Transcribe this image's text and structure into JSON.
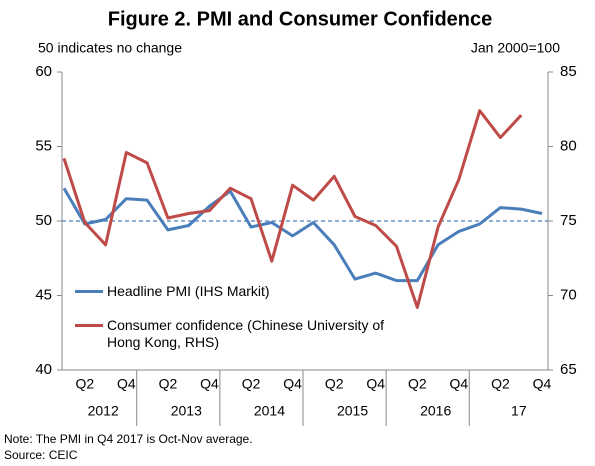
{
  "chart_data": {
    "type": "line",
    "title": "Figure 2. PMI and Consumer Confidence",
    "y_annotation": "50 indicates no change",
    "y2_annotation": "Jan 2000=100",
    "categories": [
      null,
      "Q2",
      null,
      "Q4",
      null,
      "Q2",
      null,
      "Q4",
      null,
      "Q2",
      null,
      "Q4",
      null,
      "Q2",
      null,
      "Q4",
      null,
      "Q2",
      null,
      "Q4",
      null,
      "Q2",
      null,
      "Q4"
    ],
    "year_labels": [
      "2012",
      "2013",
      "2014",
      "2015",
      "2016",
      "17"
    ],
    "series": [
      {
        "name": "Headline PMI (IHS Markit)",
        "color": "#4a7ebb",
        "axis": "y",
        "values": [
          52.2,
          49.8,
          50.1,
          51.5,
          51.4,
          49.4,
          49.7,
          51.0,
          52.0,
          49.6,
          49.9,
          49.0,
          49.9,
          48.4,
          46.1,
          46.5,
          46.0,
          46.0,
          48.4,
          49.3,
          49.8,
          50.9,
          50.8,
          50.5
        ]
      },
      {
        "name": "Consumer confidence (Chinese University of Hong Kong, RHS)",
        "color": "#be4b48",
        "axis": "y2",
        "values": [
          79.2,
          74.9,
          73.4,
          79.6,
          78.9,
          75.2,
          75.5,
          75.7,
          77.2,
          76.5,
          72.3,
          77.4,
          76.4,
          78.0,
          75.3,
          74.7,
          73.3,
          69.2,
          74.6,
          77.8,
          82.4,
          80.6,
          82.1,
          null
        ]
      }
    ],
    "ylim": [
      40,
      60
    ],
    "yticks": [
      40,
      45,
      50,
      55,
      60
    ],
    "y2lim": [
      65,
      85
    ],
    "y2ticks": [
      65,
      70,
      75,
      80,
      85
    ],
    "reference_line": 50,
    "legend": "lower left",
    "notes": [
      "Note: The PMI in Q4 2017 is Oct-Nov average.",
      "Source: CEIC"
    ]
  }
}
